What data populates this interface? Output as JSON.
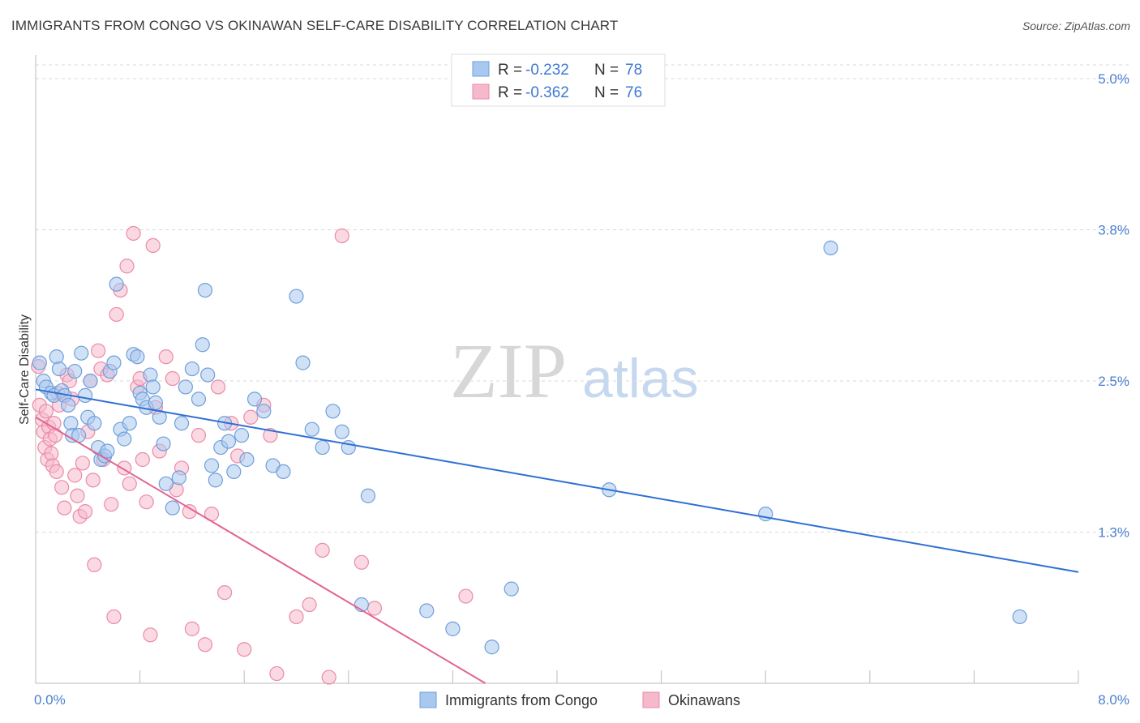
{
  "header": {
    "title": "IMMIGRANTS FROM CONGO VS OKINAWAN SELF-CARE DISABILITY CORRELATION CHART",
    "source": "Source: ZipAtlas.com"
  },
  "colors": {
    "blue_fill": "#a9c8ef",
    "blue_stroke": "#6f9fdc",
    "blue_line": "#2e6fd3",
    "pink_fill": "#f6b9cc",
    "pink_stroke": "#eb8aa9",
    "pink_line": "#e3648f",
    "tick_text": "#4a7fd0",
    "grid": "#d9d9d9"
  },
  "legend": {
    "r_label": "R =",
    "n_label": "N =",
    "series1_r": "-0.232",
    "series1_n": "78",
    "series2_r": "-0.362",
    "series2_n": "76"
  },
  "watermark": {
    "zip": "ZIP",
    "atlas": "atlas"
  },
  "chart_data": {
    "type": "scatter",
    "title": "IMMIGRANTS FROM CONGO VS OKINAWAN SELF-CARE DISABILITY CORRELATION CHART",
    "xlabel": "",
    "ylabel": "Self-Care Disability",
    "xlim": [
      0,
      8.0
    ],
    "ylim": [
      0,
      5.0
    ],
    "x_tick_labels": [
      "0.0%",
      "8.0%"
    ],
    "y_ticks": [
      1.25,
      2.5,
      3.75,
      5.0
    ],
    "y_tick_labels": [
      "1.3%",
      "2.5%",
      "3.8%",
      "5.0%"
    ],
    "grid": true,
    "legend_position": "top-center",
    "series": [
      {
        "name": "Immigrants from Congo",
        "color": "#6f9fdc",
        "r": -0.232,
        "n": 78,
        "trend": {
          "x": [
            0.0,
            8.0
          ],
          "y": [
            2.43,
            0.92
          ]
        },
        "points": [
          [
            0.03,
            2.65
          ],
          [
            0.06,
            2.5
          ],
          [
            0.08,
            2.45
          ],
          [
            0.12,
            2.4
          ],
          [
            0.14,
            2.38
          ],
          [
            0.16,
            2.7
          ],
          [
            0.18,
            2.6
          ],
          [
            0.2,
            2.42
          ],
          [
            0.22,
            2.38
          ],
          [
            0.25,
            2.3
          ],
          [
            0.27,
            2.15
          ],
          [
            0.28,
            2.05
          ],
          [
            0.3,
            2.58
          ],
          [
            0.33,
            2.05
          ],
          [
            0.35,
            2.73
          ],
          [
            0.38,
            2.38
          ],
          [
            0.4,
            2.2
          ],
          [
            0.42,
            2.5
          ],
          [
            0.45,
            2.15
          ],
          [
            0.48,
            1.95
          ],
          [
            0.5,
            1.85
          ],
          [
            0.53,
            1.88
          ],
          [
            0.55,
            1.92
          ],
          [
            0.57,
            2.58
          ],
          [
            0.6,
            2.65
          ],
          [
            0.62,
            3.3
          ],
          [
            0.65,
            2.1
          ],
          [
            0.68,
            2.02
          ],
          [
            0.72,
            2.15
          ],
          [
            0.75,
            2.72
          ],
          [
            0.78,
            2.7
          ],
          [
            0.8,
            2.4
          ],
          [
            0.82,
            2.35
          ],
          [
            0.85,
            2.28
          ],
          [
            0.88,
            2.55
          ],
          [
            0.9,
            2.45
          ],
          [
            0.92,
            2.32
          ],
          [
            0.95,
            2.2
          ],
          [
            0.98,
            1.98
          ],
          [
            1.0,
            1.65
          ],
          [
            1.05,
            1.45
          ],
          [
            1.1,
            1.7
          ],
          [
            1.12,
            2.15
          ],
          [
            1.15,
            2.45
          ],
          [
            1.2,
            2.6
          ],
          [
            1.25,
            2.35
          ],
          [
            1.28,
            2.8
          ],
          [
            1.3,
            3.25
          ],
          [
            1.32,
            2.55
          ],
          [
            1.35,
            1.8
          ],
          [
            1.38,
            1.68
          ],
          [
            1.42,
            1.95
          ],
          [
            1.45,
            2.15
          ],
          [
            1.48,
            2.0
          ],
          [
            1.52,
            1.75
          ],
          [
            1.58,
            2.05
          ],
          [
            1.62,
            1.85
          ],
          [
            1.68,
            2.35
          ],
          [
            1.75,
            2.25
          ],
          [
            1.82,
            1.8
          ],
          [
            1.9,
            1.75
          ],
          [
            2.0,
            3.2
          ],
          [
            2.05,
            2.65
          ],
          [
            2.12,
            2.1
          ],
          [
            2.2,
            1.95
          ],
          [
            2.28,
            2.25
          ],
          [
            2.35,
            2.08
          ],
          [
            2.4,
            1.95
          ],
          [
            2.5,
            0.65
          ],
          [
            2.55,
            1.55
          ],
          [
            3.0,
            0.6
          ],
          [
            3.2,
            0.45
          ],
          [
            3.5,
            0.3
          ],
          [
            3.65,
            0.78
          ],
          [
            4.4,
            1.6
          ],
          [
            5.6,
            1.4
          ],
          [
            6.1,
            3.6
          ],
          [
            7.55,
            0.55
          ]
        ]
      },
      {
        "name": "Okinawans",
        "color": "#eb8aa9",
        "r": -0.362,
        "n": 76,
        "trend": {
          "x": [
            0.0,
            3.45
          ],
          "y": [
            2.2,
            0.0
          ]
        },
        "points": [
          [
            0.02,
            2.62
          ],
          [
            0.03,
            2.3
          ],
          [
            0.05,
            2.18
          ],
          [
            0.06,
            2.08
          ],
          [
            0.07,
            1.95
          ],
          [
            0.08,
            2.25
          ],
          [
            0.09,
            1.85
          ],
          [
            0.1,
            2.12
          ],
          [
            0.11,
            2.02
          ],
          [
            0.12,
            1.9
          ],
          [
            0.13,
            1.8
          ],
          [
            0.14,
            2.15
          ],
          [
            0.15,
            2.05
          ],
          [
            0.16,
            1.75
          ],
          [
            0.17,
            2.4
          ],
          [
            0.18,
            2.3
          ],
          [
            0.2,
            1.62
          ],
          [
            0.22,
            1.45
          ],
          [
            0.24,
            2.55
          ],
          [
            0.26,
            2.5
          ],
          [
            0.28,
            2.35
          ],
          [
            0.3,
            1.72
          ],
          [
            0.32,
            1.55
          ],
          [
            0.34,
            1.38
          ],
          [
            0.36,
            1.82
          ],
          [
            0.38,
            1.42
          ],
          [
            0.4,
            2.08
          ],
          [
            0.42,
            2.5
          ],
          [
            0.44,
            1.68
          ],
          [
            0.45,
            0.98
          ],
          [
            0.48,
            2.75
          ],
          [
            0.5,
            2.6
          ],
          [
            0.52,
            1.85
          ],
          [
            0.55,
            2.55
          ],
          [
            0.58,
            1.48
          ],
          [
            0.6,
            0.55
          ],
          [
            0.62,
            3.05
          ],
          [
            0.65,
            3.25
          ],
          [
            0.68,
            1.78
          ],
          [
            0.7,
            3.45
          ],
          [
            0.72,
            1.65
          ],
          [
            0.75,
            3.72
          ],
          [
            0.78,
            2.45
          ],
          [
            0.8,
            2.52
          ],
          [
            0.82,
            1.85
          ],
          [
            0.85,
            1.5
          ],
          [
            0.88,
            0.4
          ],
          [
            0.9,
            3.62
          ],
          [
            0.92,
            2.28
          ],
          [
            0.95,
            1.92
          ],
          [
            1.0,
            2.7
          ],
          [
            1.05,
            2.52
          ],
          [
            1.08,
            1.6
          ],
          [
            1.12,
            1.78
          ],
          [
            1.18,
            1.42
          ],
          [
            1.2,
            0.45
          ],
          [
            1.25,
            2.05
          ],
          [
            1.3,
            0.32
          ],
          [
            1.35,
            1.4
          ],
          [
            1.4,
            2.45
          ],
          [
            1.45,
            0.75
          ],
          [
            1.5,
            2.15
          ],
          [
            1.55,
            1.88
          ],
          [
            1.6,
            0.28
          ],
          [
            1.65,
            2.2
          ],
          [
            1.75,
            2.3
          ],
          [
            1.8,
            2.05
          ],
          [
            1.85,
            0.08
          ],
          [
            2.0,
            0.55
          ],
          [
            2.1,
            0.65
          ],
          [
            2.2,
            1.1
          ],
          [
            2.25,
            0.05
          ],
          [
            2.35,
            3.7
          ],
          [
            2.5,
            1.0
          ],
          [
            2.6,
            0.62
          ],
          [
            3.3,
            0.72
          ]
        ]
      }
    ]
  },
  "bottom_legend": {
    "series1_label": "Immigrants from Congo",
    "series2_label": "Okinawans"
  }
}
